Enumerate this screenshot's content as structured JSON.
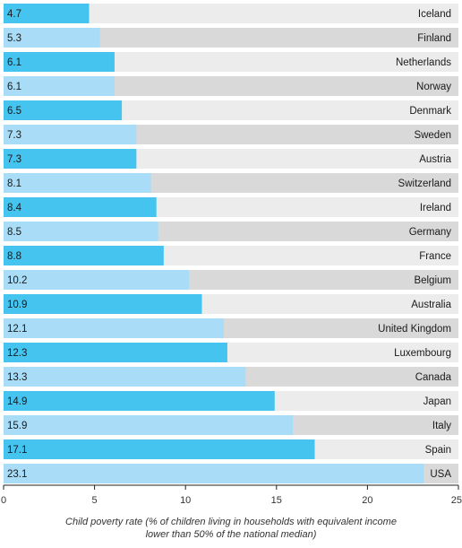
{
  "chart_data": {
    "type": "bar",
    "orientation": "horizontal",
    "categories": [
      "Iceland",
      "Finland",
      "Netherlands",
      "Norway",
      "Denmark",
      "Sweden",
      "Austria",
      "Switzerland",
      "Ireland",
      "Germany",
      "France",
      "Belgium",
      "Australia",
      "United Kingdom",
      "Luxembourg",
      "Canada",
      "Japan",
      "Italy",
      "Spain",
      "USA"
    ],
    "values": [
      4.7,
      5.3,
      6.1,
      6.1,
      6.5,
      7.3,
      7.3,
      8.1,
      8.4,
      8.5,
      8.8,
      10.2,
      10.9,
      12.1,
      12.3,
      13.3,
      14.9,
      15.9,
      17.1,
      23.1
    ],
    "value_labels": [
      "4.7",
      "5.3",
      "6.1",
      "6.1",
      "6.5",
      "7.3",
      "7.3",
      "8.1",
      "8.4",
      "8.5",
      "8.8",
      "10.2",
      "10.9",
      "12.1",
      "12.3",
      "13.3",
      "14.9",
      "15.9",
      "17.1",
      "23.1"
    ],
    "xlim": [
      0,
      25
    ],
    "xticks": [
      0,
      5,
      10,
      15,
      20,
      25
    ],
    "xtick_labels": [
      "0",
      "5",
      "10",
      "15",
      "20",
      "25"
    ],
    "xlabel_lines": [
      "Child poverty rate (% of children living in households with equivalent income",
      "lower than 50% of the national median)"
    ],
    "colors": {
      "bar_even": "#45c4f0",
      "bar_odd": "#a9dcf6",
      "band_even": "#ececec",
      "band_odd": "#d9d9d9"
    }
  }
}
